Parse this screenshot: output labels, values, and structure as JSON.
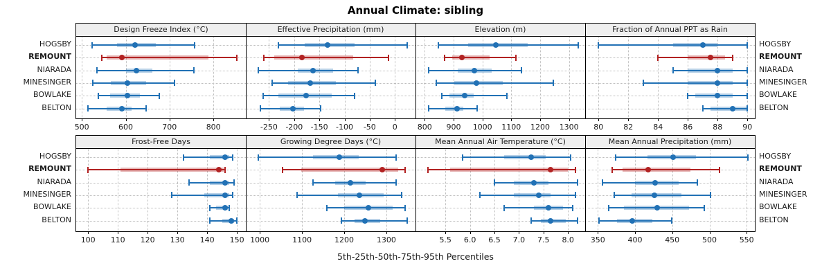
{
  "title": "Annual Climate: sibling",
  "caption": "5th-25th-50th-75th-95th Percentiles",
  "stations": [
    "HOGSBY",
    "REMOUNT",
    "NIARADA",
    "MINESINGER",
    "BOWLAKE",
    "BELTON"
  ],
  "highlight_station": "REMOUNT",
  "percentile_labels": [
    "5th",
    "25th",
    "50th",
    "75th",
    "95th"
  ],
  "colors": {
    "series_normal": "#2171B5",
    "series_highlight": "#B22222",
    "strip_background": "#EFEFEF",
    "grid": "#BCBCBC",
    "frame": "#000000"
  },
  "chart_data": {
    "type": "percentile-interval-plot",
    "grid": "dotted",
    "legend_position": "none",
    "rows": 2,
    "cols": 4,
    "panels": [
      {
        "title": "Design Freeze Index (°C)",
        "row": 0,
        "col": 0,
        "axis_range": [
          487,
          874
        ],
        "ticks": [
          500,
          600,
          700,
          800
        ],
        "tick_labels": [
          "500",
          "600",
          "700",
          "800"
        ],
        "series": [
          {
            "name": "HOGSBY",
            "percentiles": [
              524,
              580,
              621,
              668,
              757
            ]
          },
          {
            "name": "REMOUNT",
            "percentiles": [
              545,
              556,
              592,
              789,
              854
            ]
          },
          {
            "name": "NIARADA",
            "percentiles": [
              534,
              600,
              625,
              660,
              755
            ]
          },
          {
            "name": "MINESINGER",
            "percentiles": [
              525,
              566,
              604,
              646,
              712
            ]
          },
          {
            "name": "BOWLAKE",
            "percentiles": [
              538,
              564,
              604,
              632,
              677
            ]
          },
          {
            "name": "BELTON",
            "percentiles": [
              514,
              557,
              591,
              613,
              646
            ]
          }
        ]
      },
      {
        "title": "Effective Precipitation (mm)",
        "row": 0,
        "col": 1,
        "axis_range": [
          -296,
          41
        ],
        "ticks": [
          -250,
          -200,
          -150,
          -100,
          -50,
          0
        ],
        "tick_labels": [
          "-250",
          "-200",
          "-150",
          "-100",
          "-50",
          "0"
        ],
        "series": [
          {
            "name": "HOGSBY",
            "percentiles": [
              -232,
              -179,
              -134,
              -80,
              25
            ]
          },
          {
            "name": "REMOUNT",
            "percentiles": [
              -260,
              -239,
              -184,
              -83,
              -12
            ]
          },
          {
            "name": "NIARADA",
            "percentiles": [
              -271,
              -193,
              -162,
              -122,
              -73
            ]
          },
          {
            "name": "MINESINGER",
            "percentiles": [
              -244,
              -212,
              -168,
              -117,
              -39
            ]
          },
          {
            "name": "BOWLAKE",
            "percentiles": [
              -261,
              -232,
              -177,
              -126,
              -80
            ]
          },
          {
            "name": "BELTON",
            "percentiles": [
              -267,
              -228,
              -202,
              -180,
              -147
            ]
          }
        ]
      },
      {
        "title": "Elevation (m)",
        "row": 0,
        "col": 2,
        "axis_range": [
          768,
          1356
        ],
        "ticks": [
          800,
          900,
          1000,
          1100,
          1200,
          1300
        ],
        "tick_labels": [
          "800",
          "900",
          "1000",
          "1100",
          "1200",
          "1300"
        ],
        "series": [
          {
            "name": "HOGSBY",
            "percentiles": [
              846,
              950,
              1046,
              1158,
              1332
            ]
          },
          {
            "name": "REMOUNT",
            "percentiles": [
              868,
              896,
              928,
              1026,
              1116
            ]
          },
          {
            "name": "NIARADA",
            "percentiles": [
              814,
              914,
              972,
              1032,
              1134
            ]
          },
          {
            "name": "MINESINGER",
            "percentiles": [
              840,
              902,
              980,
              1070,
              1246
            ]
          },
          {
            "name": "BOWLAKE",
            "percentiles": [
              858,
              886,
              938,
              970,
              1084
            ]
          },
          {
            "name": "BELTON",
            "percentiles": [
              814,
              872,
              912,
              934,
              982
            ]
          }
        ]
      },
      {
        "title": "Fraction of Annual PPT as Rain",
        "row": 0,
        "col": 3,
        "axis_range": [
          79.1,
          90.5
        ],
        "ticks": [
          80,
          82,
          84,
          86,
          88,
          90
        ],
        "tick_labels": [
          "80",
          "82",
          "84",
          "86",
          "88",
          "90"
        ],
        "series": [
          {
            "name": "HOGSBY",
            "percentiles": [
              80,
              85,
              87,
              88,
              90
            ]
          },
          {
            "name": "REMOUNT",
            "percentiles": [
              84,
              86,
              87.5,
              88.5,
              89
            ]
          },
          {
            "name": "NIARADA",
            "percentiles": [
              85,
              86,
              88,
              89,
              90
            ]
          },
          {
            "name": "MINESINGER",
            "percentiles": [
              83,
              86,
              88,
              89,
              90
            ]
          },
          {
            "name": "BOWLAKE",
            "percentiles": [
              86,
              86.5,
              88,
              89,
              90
            ]
          },
          {
            "name": "BELTON",
            "percentiles": [
              87,
              87.5,
              89,
              90,
              90
            ]
          }
        ]
      },
      {
        "title": "Frost-Free Days",
        "row": 1,
        "col": 0,
        "axis_range": [
          96,
          153
        ],
        "ticks": [
          100,
          110,
          120,
          130,
          140,
          150
        ],
        "tick_labels": [
          "100",
          "110",
          "120",
          "130",
          "140",
          "150"
        ],
        "series": [
          {
            "name": "HOGSBY",
            "percentiles": [
              132,
              141,
              146,
              147.5,
              148.5
            ]
          },
          {
            "name": "REMOUNT",
            "percentiles": [
              100,
              111,
              144,
              145.5,
              146
            ]
          },
          {
            "name": "NIARADA",
            "percentiles": [
              134,
              141,
              146,
              147.5,
              149
            ]
          },
          {
            "name": "MINESINGER",
            "percentiles": [
              128,
              139,
              146,
              147.5,
              148.5
            ]
          },
          {
            "name": "BOWLAKE",
            "percentiles": [
              141,
              143,
              146,
              147,
              147.5
            ]
          },
          {
            "name": "BELTON",
            "percentiles": [
              141,
              145,
              148,
              149,
              150
            ]
          }
        ]
      },
      {
        "title": "Growing Degree Days (°C)",
        "row": 1,
        "col": 1,
        "axis_range": [
          967,
          1369
        ],
        "ticks": [
          1000,
          1100,
          1200,
          1300
        ],
        "tick_labels": [
          "1000",
          "1100",
          "1200",
          "1300"
        ],
        "series": [
          {
            "name": "HOGSBY",
            "percentiles": [
              997,
              1126,
              1189,
              1235,
              1323
            ]
          },
          {
            "name": "REMOUNT",
            "percentiles": [
              1054,
              1099,
              1291,
              1328,
              1344
            ]
          },
          {
            "name": "NIARADA",
            "percentiles": [
              1126,
              1178,
              1215,
              1251,
              1323
            ]
          },
          {
            "name": "MINESINGER",
            "percentiles": [
              1089,
              1186,
              1236,
              1293,
              1337
            ]
          },
          {
            "name": "BOWLAKE",
            "percentiles": [
              1159,
              1200,
              1258,
              1315,
              1344
            ]
          },
          {
            "name": "BELTON",
            "percentiles": [
              1194,
              1224,
              1250,
              1285,
              1349
            ]
          }
        ]
      },
      {
        "title": "Mean Annual Air Temperature (°C)",
        "row": 1,
        "col": 2,
        "axis_range": [
          4.89,
          8.35
        ],
        "ticks": [
          5.5,
          6.0,
          6.5,
          7.0,
          7.5,
          8.0
        ],
        "tick_labels": [
          "5.5",
          "6.0",
          "6.5",
          "7.0",
          "7.5",
          "8.0"
        ],
        "series": [
          {
            "name": "HOGSBY",
            "percentiles": [
              5.85,
              6.7,
              7.25,
              7.55,
              8.05
            ]
          },
          {
            "name": "REMOUNT",
            "percentiles": [
              5.15,
              5.6,
              7.65,
              8.0,
              8.15
            ]
          },
          {
            "name": "NIARADA",
            "percentiles": [
              6.5,
              6.9,
              7.3,
              7.6,
              8.2
            ]
          },
          {
            "name": "MINESINGER",
            "percentiles": [
              6.2,
              6.9,
              7.4,
              7.65,
              8.15
            ]
          },
          {
            "name": "BOWLAKE",
            "percentiles": [
              6.7,
              7.3,
              7.6,
              7.9,
              8.1
            ]
          },
          {
            "name": "BELTON",
            "percentiles": [
              7.25,
              7.45,
              7.65,
              7.95,
              8.2
            ]
          }
        ]
      },
      {
        "title": "Mean Annual Precipitation (mm)",
        "row": 1,
        "col": 3,
        "axis_range": [
          333,
          561
        ],
        "ticks": [
          350,
          400,
          450,
          500,
          550
        ],
        "tick_labels": [
          "350",
          "400",
          "450",
          "500",
          "550"
        ],
        "series": [
          {
            "name": "HOGSBY",
            "percentiles": [
              374,
              417,
              451,
              482,
              552
            ]
          },
          {
            "name": "REMOUNT",
            "percentiles": [
              369,
              383,
              418,
              474,
              514
            ]
          },
          {
            "name": "NIARADA",
            "percentiles": [
              356,
              400,
              427,
              459,
              484
            ]
          },
          {
            "name": "MINESINGER",
            "percentiles": [
              372,
              395,
              426,
              462,
              501
            ]
          },
          {
            "name": "BOWLAKE",
            "percentiles": [
              365,
              385,
              430,
              473,
              493
            ]
          },
          {
            "name": "BELTON",
            "percentiles": [
              352,
              376,
              396,
              423,
              449
            ]
          }
        ]
      }
    ]
  }
}
